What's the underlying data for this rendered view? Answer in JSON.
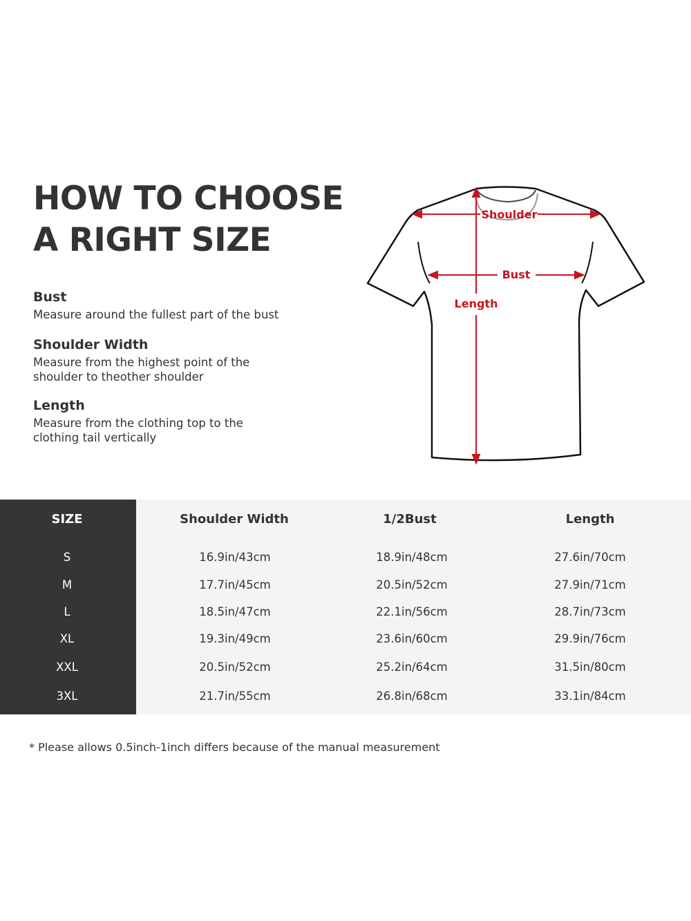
{
  "title": {
    "line1": "HOW TO CHOOSE",
    "line2": "A RIGHT SIZE"
  },
  "guide": [
    {
      "heading": "Bust",
      "text": "Measure around the fullest part of the bust"
    },
    {
      "heading": "Shoulder Width",
      "text": "Measure from the highest point of the shoulder to theother shoulder"
    },
    {
      "heading": "Length",
      "text": "Measure from the clothing top to the clothing tail vertically"
    }
  ],
  "diagram": {
    "shoulder": "Shoulder",
    "bust": "Bust",
    "length": "Length",
    "accent": "#c8141c"
  },
  "table": {
    "headers": [
      "SIZE",
      "Shoulder Width",
      "1/2Bust",
      "Length"
    ],
    "rows": [
      [
        "S",
        "16.9in/43cm",
        "18.9in/48cm",
        "27.6in/70cm"
      ],
      [
        "M",
        "17.7in/45cm",
        "20.5in/52cm",
        "27.9in/71cm"
      ],
      [
        "L",
        "18.5in/47cm",
        "22.1in/56cm",
        "28.7in/73cm"
      ],
      [
        "XL",
        "19.3in/49cm",
        "23.6in/60cm",
        "29.9in/76cm"
      ],
      [
        "XXL",
        "20.5in/52cm",
        "25.2in/64cm",
        "31.5in/80cm"
      ],
      [
        "3XL",
        "21.7in/55cm",
        "26.8in/68cm",
        "33.1in/84cm"
      ]
    ]
  },
  "note": "* Please allows 0.5inch-1inch differs because of the  manual measurement"
}
